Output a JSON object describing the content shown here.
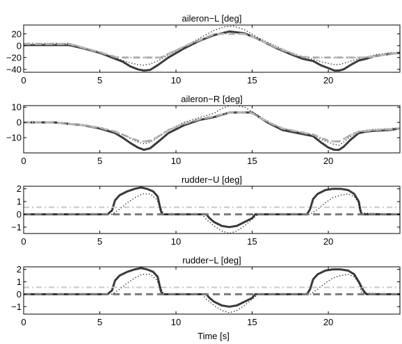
{
  "figure": {
    "xlabel": "Time [s]"
  },
  "chart_data": [
    {
      "type": "line",
      "title": "aileron−L [deg]",
      "xlim": [
        0,
        24.7
      ],
      "ylim": [
        -45,
        35
      ],
      "xticks": [
        0,
        5,
        10,
        15,
        20
      ],
      "xtick_labels": [
        "0",
        "5",
        "10",
        "15",
        "20"
      ],
      "yticks": [
        20,
        0,
        -20,
        -40
      ],
      "ytick_labels": [
        "20",
        "0",
        "−20",
        "−40"
      ],
      "grid": false,
      "series": [
        {
          "style": "thick-solid",
          "color": "#3a3a3a",
          "x": [
            0,
            3,
            4,
            5,
            6,
            6.5,
            7,
            7.5,
            7.9,
            8.3,
            8.8,
            9.5,
            10.5,
            11.5,
            12.5,
            13.5,
            14.5,
            15.5,
            16.5,
            17.5,
            18.3,
            19,
            19.5,
            20,
            20.4,
            20.7,
            21,
            21.5,
            22,
            22.5,
            23,
            23.5,
            24,
            24.7
          ],
          "y": [
            1,
            1,
            -5,
            -12,
            -22,
            -27,
            -35,
            -40,
            -42,
            -41,
            -33,
            -20,
            -5,
            8,
            18,
            24,
            21,
            10,
            -3,
            -14,
            -22,
            -26,
            -33,
            -38,
            -42,
            -42,
            -40,
            -32,
            -25,
            -22,
            -18,
            -16,
            -14,
            -12
          ]
        },
        {
          "style": "dotted",
          "color": "#000000",
          "x": [
            0,
            3,
            4,
            5,
            6,
            6.5,
            7,
            7.5,
            7.9,
            8.3,
            8.8,
            9.5,
            10.5,
            11.5,
            12.5,
            13.2,
            13.8,
            14.5,
            15.5,
            16.5,
            17.5,
            18.3,
            19,
            19.5,
            20,
            20.4,
            20.7,
            21,
            21.5,
            22,
            22.5,
            23,
            23.5,
            24,
            24.7
          ],
          "y": [
            4,
            4,
            -3,
            -11,
            -20,
            -25,
            -29,
            -32,
            -33,
            -31,
            -26,
            -16,
            -2,
            12,
            26,
            32,
            33,
            27,
            12,
            0,
            -11,
            -19,
            -23,
            -27,
            -30,
            -32,
            -32,
            -30,
            -26,
            -22,
            -19,
            -16,
            -14,
            -12,
            -11
          ]
        },
        {
          "style": "dashed",
          "color": "#bdbdbd",
          "x": [
            0,
            3,
            4,
            5,
            6,
            6.5,
            9,
            10,
            11,
            12,
            12.5,
            14.5,
            15.5,
            16.5,
            17.5,
            18.3,
            19,
            22.3,
            23,
            23.5,
            24,
            24.7
          ],
          "y": [
            3,
            3,
            -4,
            -11,
            -19,
            -20,
            -20,
            -8,
            4,
            14,
            20,
            20,
            10,
            -2,
            -12,
            -19,
            -20,
            -20,
            -18,
            -16,
            -14,
            -12
          ]
        },
        {
          "style": "dash-dot",
          "color": "#a6a6a6",
          "x": [
            0,
            3,
            4,
            5,
            6,
            6.5,
            9,
            10,
            11,
            12,
            12.5,
            14.5,
            15.5,
            16.5,
            17.5,
            18.3,
            19,
            22.3,
            23,
            23.5,
            24,
            24.7
          ],
          "y": [
            3,
            3,
            -4,
            -11,
            -19,
            -20,
            -20,
            -8,
            4,
            14,
            20,
            20,
            10,
            -2,
            -12,
            -19,
            -20,
            -20,
            -18,
            -16,
            -14,
            -12
          ]
        }
      ]
    },
    {
      "type": "line",
      "title": "aileron−R [deg]",
      "xlim": [
        0,
        24.7
      ],
      "ylim": [
        -20,
        11
      ],
      "xticks": [
        0,
        5,
        10,
        15,
        20
      ],
      "xtick_labels": [
        "0",
        "5",
        "10",
        "15",
        "20"
      ],
      "yticks": [
        10,
        0,
        -10
      ],
      "ytick_labels": [
        "10",
        "0",
        "−10"
      ],
      "grid": false,
      "series": [
        {
          "style": "thick-solid",
          "color": "#3a3a3a",
          "x": [
            0,
            2,
            3,
            4,
            5,
            6,
            6.5,
            7,
            7.5,
            7.9,
            8.3,
            8.8,
            9.5,
            10.5,
            11.5,
            12.5,
            13.5,
            14.5,
            15,
            16,
            17,
            18,
            19,
            19.5,
            20,
            20.4,
            20.7,
            21,
            21.5,
            22,
            22.5,
            23,
            24,
            24.7
          ],
          "y": [
            0,
            0,
            -1,
            -2,
            -4,
            -7,
            -10,
            -13.5,
            -16.5,
            -18,
            -17,
            -13,
            -7,
            -2,
            1.5,
            3.5,
            6.5,
            6.5,
            6.5,
            0,
            -5,
            -7,
            -9,
            -13,
            -16.5,
            -18,
            -18,
            -16,
            -11,
            -7,
            -6,
            -5.5,
            -5,
            -4
          ]
        },
        {
          "style": "dotted",
          "color": "#000000",
          "x": [
            0,
            2,
            3,
            4,
            5,
            6,
            6.5,
            7,
            7.5,
            7.9,
            8.3,
            8.8,
            9.5,
            10.5,
            11.5,
            12.5,
            13,
            13.5,
            14,
            14.5,
            15,
            16,
            17,
            18,
            19,
            19.5,
            20,
            20.4,
            20.7,
            21,
            21.5,
            22,
            22.5,
            23,
            24,
            24.7
          ],
          "y": [
            0,
            0,
            -1,
            -2,
            -3.5,
            -6,
            -8,
            -10.5,
            -13,
            -14,
            -13,
            -10,
            -5,
            0,
            3,
            6,
            9,
            11,
            11,
            10,
            7,
            1,
            -4,
            -6,
            -8,
            -11,
            -13,
            -14.5,
            -15,
            -13,
            -9,
            -6,
            -5,
            -4.5,
            -4,
            -3.5
          ]
        },
        {
          "style": "dashed",
          "color": "#bdbdbd",
          "x": [
            0,
            2,
            3,
            4,
            5,
            6,
            6.5,
            7,
            7.5,
            7.9,
            8.3,
            8.8,
            9.5,
            10.5,
            11.5,
            12.5,
            13.5,
            14.5,
            15,
            16,
            17,
            18,
            19,
            19.5,
            20,
            20.4,
            20.7,
            21,
            21.5,
            22,
            22.5,
            23,
            24,
            24.7
          ],
          "y": [
            0,
            0,
            -1,
            -2,
            -3.5,
            -6,
            -8,
            -10,
            -12,
            -12.5,
            -12,
            -9.5,
            -5,
            -1,
            2,
            4,
            6.5,
            6.5,
            6,
            0.5,
            -4,
            -6,
            -8,
            -10,
            -12,
            -12.5,
            -12.5,
            -11,
            -8,
            -6,
            -5.5,
            -5,
            -4.5,
            -4
          ]
        },
        {
          "style": "dash-dot",
          "color": "#a6a6a6",
          "x": [
            0,
            2,
            3,
            4,
            5,
            6,
            6.5,
            7,
            7.5,
            7.9,
            8.3,
            8.8,
            9.5,
            10.5,
            11.5,
            12.5,
            13.5,
            14.5,
            15,
            16,
            17,
            18,
            19,
            19.5,
            20,
            20.4,
            20.7,
            21,
            21.5,
            22,
            22.5,
            23,
            24,
            24.7
          ],
          "y": [
            0,
            0,
            -1,
            -2,
            -3.5,
            -6,
            -8,
            -10,
            -12,
            -12.5,
            -12,
            -9.5,
            -5,
            -1,
            2,
            4,
            6.5,
            6.5,
            6,
            0.5,
            -4,
            -6,
            -8,
            -10,
            -12,
            -12.5,
            -12.5,
            -11,
            -8,
            -6,
            -5.5,
            -5,
            -4.5,
            -4
          ]
        }
      ]
    },
    {
      "type": "line",
      "title": "rudder−U [deg]",
      "xlim": [
        0,
        24.7
      ],
      "ylim": [
        -1.5,
        2.2
      ],
      "xticks": [
        0,
        5,
        10,
        15,
        20
      ],
      "xtick_labels": [
        "0",
        "5",
        "10",
        "15",
        "20"
      ],
      "yticks": [
        2,
        1,
        0,
        -1
      ],
      "ytick_labels": [
        "2",
        "1",
        "0",
        "−1"
      ],
      "grid": false,
      "series": [
        {
          "style": "thick-solid",
          "color": "#3a3a3a",
          "x": [
            0,
            5.5,
            5.8,
            6,
            6.3,
            6.8,
            7.3,
            7.7,
            8.1,
            8.5,
            8.8,
            9.0,
            9.1,
            12,
            12.2,
            12.5,
            13,
            13.5,
            14,
            14.5,
            15,
            15.2,
            18.6,
            18.8,
            19.0,
            19.3,
            19.8,
            20.3,
            20.8,
            21.3,
            21.7,
            22.0,
            22.1,
            22.2,
            24.7
          ],
          "y": [
            0,
            0,
            0.3,
            1.1,
            1.5,
            1.8,
            2.0,
            2.1,
            2.0,
            1.8,
            1.4,
            0.3,
            0,
            0,
            -0.3,
            -0.6,
            -0.9,
            -1.0,
            -0.9,
            -0.6,
            -0.3,
            0,
            0,
            0.4,
            1.2,
            1.6,
            1.9,
            2.0,
            2.0,
            1.9,
            1.6,
            1.0,
            0.3,
            0,
            0
          ]
        },
        {
          "style": "dotted",
          "color": "#000000",
          "x": [
            0,
            5.8,
            6.3,
            6.8,
            7.3,
            7.8,
            8.3,
            8.7,
            9.0,
            9.2,
            11.7,
            12,
            12.5,
            13,
            13.5,
            14,
            14.5,
            15,
            15.4,
            18.8,
            19.3,
            19.8,
            20.3,
            20.8,
            21.3,
            21.7,
            22.0,
            22.2,
            24.7
          ],
          "y": [
            0,
            0,
            0.4,
            0.9,
            1.3,
            1.6,
            1.6,
            1.2,
            0.5,
            0,
            0,
            -0.4,
            -0.9,
            -1.3,
            -1.5,
            -1.3,
            -0.9,
            -0.4,
            0,
            0,
            0.4,
            0.9,
            1.3,
            1.5,
            1.6,
            1.4,
            0.9,
            0.1,
            0
          ]
        },
        {
          "style": "dashed",
          "color": "#7a7a7a",
          "x": [
            0,
            24.7
          ],
          "y": [
            0,
            0
          ]
        },
        {
          "style": "dash-dot",
          "color": "#c8c8c8",
          "x": [
            0,
            24.7
          ],
          "y": [
            0.55,
            0.55
          ]
        }
      ]
    },
    {
      "type": "line",
      "title": "rudder−L [deg]",
      "xlim": [
        0,
        24.7
      ],
      "ylim": [
        -1.6,
        2.2
      ],
      "xticks": [
        0,
        5,
        10,
        15,
        20
      ],
      "xtick_labels": [
        "0",
        "5",
        "10",
        "15",
        "20"
      ],
      "yticks": [
        2,
        1,
        0,
        -1
      ],
      "ytick_labels": [
        "2",
        "1",
        "0",
        "−1"
      ],
      "xlabel": "Time [s]",
      "grid": false,
      "series": [
        {
          "style": "thick-solid",
          "color": "#3a3a3a",
          "x": [
            0,
            4.5,
            5.5,
            5.8,
            6,
            6.3,
            6.8,
            7.3,
            7.7,
            8.1,
            8.5,
            8.8,
            9.0,
            9.1,
            12,
            12.2,
            12.5,
            13,
            13.5,
            14,
            14.5,
            15,
            15.2,
            18.6,
            18.8,
            19.0,
            19.3,
            19.8,
            20.3,
            20.8,
            21.3,
            21.7,
            22.0,
            22.3,
            22.5,
            24.7
          ],
          "y": [
            0,
            0,
            0,
            0.3,
            1.1,
            1.5,
            1.8,
            2.0,
            2.1,
            2.0,
            1.8,
            1.4,
            0.3,
            0,
            0,
            -0.3,
            -0.6,
            -0.9,
            -1.0,
            -0.9,
            -0.6,
            -0.3,
            0,
            0,
            0.4,
            1.2,
            1.6,
            1.9,
            2.0,
            2.0,
            1.9,
            1.6,
            1.0,
            0.3,
            0,
            0
          ]
        },
        {
          "style": "dotted",
          "color": "#000000",
          "x": [
            0,
            5.8,
            6.3,
            6.8,
            7.3,
            7.8,
            8.3,
            8.7,
            9.0,
            9.2,
            11.7,
            12,
            12.5,
            13,
            13.5,
            14,
            14.5,
            15,
            15.4,
            18.8,
            19.3,
            19.8,
            20.3,
            20.8,
            21.3,
            21.7,
            22.0,
            22.2,
            24.7
          ],
          "y": [
            0,
            0,
            0.4,
            0.9,
            1.3,
            1.6,
            1.6,
            1.2,
            0.5,
            0,
            0,
            -0.4,
            -0.9,
            -1.3,
            -1.5,
            -1.3,
            -0.9,
            -0.4,
            0,
            0,
            0.4,
            0.9,
            1.3,
            1.5,
            1.6,
            1.4,
            0.9,
            0.1,
            0
          ]
        },
        {
          "style": "dashed",
          "color": "#7a7a7a",
          "x": [
            0,
            24.7
          ],
          "y": [
            0,
            0
          ]
        },
        {
          "style": "dash-dot",
          "color": "#c8c8c8",
          "x": [
            0,
            24.7
          ],
          "y": [
            0.55,
            0.55
          ]
        }
      ]
    }
  ]
}
